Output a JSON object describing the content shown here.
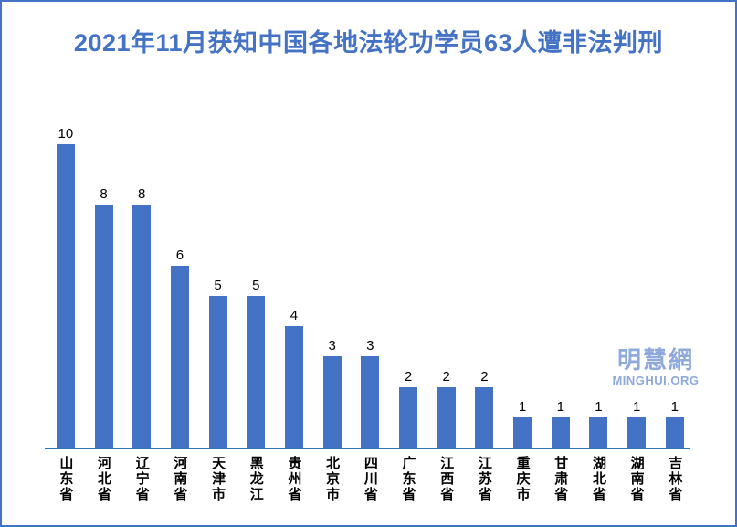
{
  "frame": {
    "border_color": "#4472C4",
    "background": "#ffffff"
  },
  "title": {
    "text": "2021年11月获知中国各地法轮功学员63人遭非法判刑",
    "color": "#4472C4"
  },
  "watermark": {
    "cjk": "明慧網",
    "latin": "MINGHUI.ORG",
    "color": "#8EA9DB"
  },
  "chart_data": {
    "type": "bar",
    "title": "2021年11月获知中国各地法轮功学员63人遭非法判刑",
    "categories": [
      "山东省",
      "河北省",
      "辽宁省",
      "河南省",
      "天津市",
      "黑龙江",
      "贵州省",
      "北京市",
      "四川省",
      "广东省",
      "江西省",
      "江苏省",
      "重庆市",
      "甘肃省",
      "湖北省",
      "湖南省",
      "吉林省"
    ],
    "values": [
      10,
      8,
      8,
      6,
      5,
      5,
      4,
      3,
      3,
      2,
      2,
      2,
      1,
      1,
      1,
      1,
      1
    ],
    "total": 63,
    "xlabel": "",
    "ylabel": "",
    "ylim": [
      0,
      10
    ],
    "bar_color": "#4472C4",
    "axis_line_color": "#2E75B6",
    "data_labels": true,
    "gridlines": false,
    "legend_position": "none"
  }
}
